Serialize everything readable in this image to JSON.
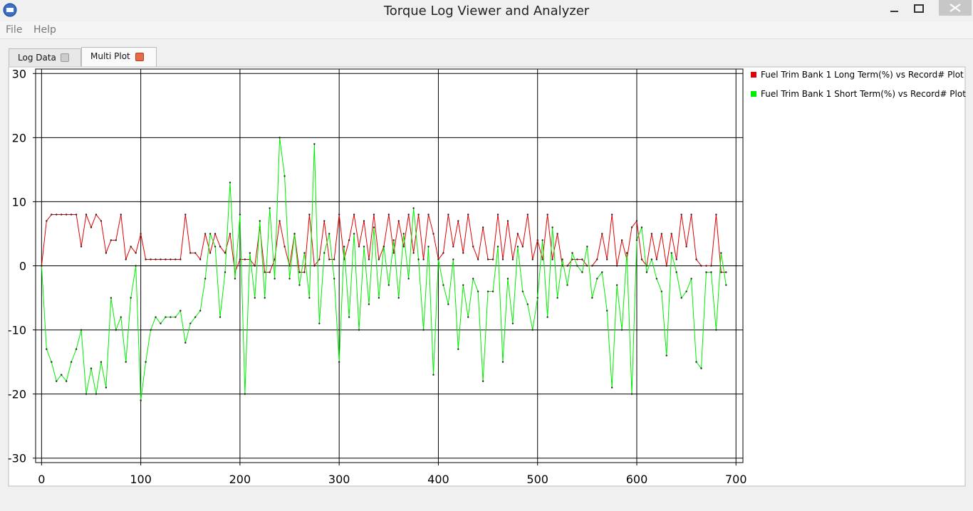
{
  "window_title": "Torque Log Viewer and Analyzer",
  "menu": [
    "File",
    "Help"
  ],
  "tabs": [
    "Log Data",
    "Multi Plot"
  ],
  "chart_data": {
    "type": "line",
    "x": [
      0,
      5,
      10,
      15,
      20,
      25,
      30,
      35,
      40,
      45,
      50,
      55,
      60,
      65,
      70,
      75,
      80,
      85,
      90,
      95,
      100,
      105,
      110,
      115,
      120,
      125,
      130,
      135,
      140,
      145,
      150,
      155,
      160,
      165,
      170,
      175,
      180,
      185,
      190,
      195,
      200,
      205,
      210,
      215,
      220,
      225,
      230,
      235,
      240,
      245,
      250,
      255,
      260,
      265,
      270,
      275,
      280,
      285,
      290,
      295,
      300,
      305,
      310,
      315,
      320,
      325,
      330,
      335,
      340,
      345,
      350,
      355,
      360,
      365,
      370,
      375,
      380,
      385,
      390,
      395,
      400,
      405,
      410,
      415,
      420,
      425,
      430,
      435,
      440,
      445,
      450,
      455,
      460,
      465,
      470,
      475,
      480,
      485,
      490,
      495,
      500,
      505,
      510,
      515,
      520,
      525,
      530,
      535,
      540,
      545,
      550,
      555,
      560,
      565,
      570,
      575,
      580,
      585,
      590,
      595,
      600,
      605,
      610,
      615,
      620,
      625,
      630,
      635,
      640,
      645,
      650,
      655,
      660,
      665,
      670,
      675,
      680,
      685,
      690
    ],
    "series": [
      {
        "name": "Fuel Trim Bank 1 Long Term(%) vs Record# Plot",
        "color": "#e00000",
        "values": [
          0,
          7,
          8,
          8,
          8,
          8,
          8,
          8,
          3,
          8,
          6,
          8,
          7,
          2,
          4,
          4,
          8,
          1,
          3,
          2,
          5,
          1,
          1,
          1,
          1,
          1,
          1,
          1,
          1,
          8,
          2,
          2,
          1,
          5,
          2,
          5,
          3,
          2,
          5,
          -1,
          1,
          1,
          1,
          0,
          6,
          -1,
          -1,
          1,
          7,
          3,
          0,
          5,
          -1,
          -1,
          8,
          0,
          1,
          7,
          1,
          1,
          8,
          1,
          4,
          8,
          3,
          7,
          1,
          8,
          1,
          3,
          8,
          2,
          7,
          3,
          8,
          2,
          8,
          1,
          8,
          5,
          1,
          2,
          8,
          3,
          7,
          2,
          8,
          3,
          1,
          6,
          1,
          1,
          8,
          1,
          7,
          1,
          5,
          3,
          8,
          1,
          4,
          1,
          8,
          1,
          5,
          0,
          0,
          1,
          1,
          1,
          0,
          0,
          1,
          5,
          1,
          8,
          0,
          4,
          1,
          6,
          7,
          1,
          0,
          5,
          1,
          5,
          0,
          5,
          1,
          8,
          3,
          8,
          1,
          0,
          0,
          0,
          8,
          -1,
          -1
        ]
      },
      {
        "name": "Fuel Trim Bank 1 Short Term(%) vs Record# Plot",
        "color": "#00ee00",
        "values": [
          0,
          -13,
          -15,
          -18,
          -17,
          -18,
          -15,
          -13,
          -10,
          -20,
          -16,
          -20,
          -15,
          -19,
          -5,
          -10,
          -8,
          -15,
          -5,
          0,
          -21,
          -15,
          -10,
          -8,
          -9,
          -8,
          -8,
          -8,
          -7,
          -12,
          -9,
          -8,
          -7,
          -2,
          5,
          3,
          -8,
          -1,
          13,
          -2,
          8,
          -20,
          2,
          -5,
          7,
          -5,
          9,
          -2,
          20,
          14,
          -2,
          5,
          -3,
          2,
          -5,
          19,
          -9,
          2,
          5,
          -2,
          -15,
          3,
          -8,
          5,
          -10,
          3,
          -6,
          6,
          -5,
          3,
          -3,
          4,
          -5,
          5,
          -2,
          9,
          1,
          -10,
          3,
          -17,
          1,
          -3,
          -6,
          1,
          -13,
          -3,
          -8,
          -2,
          -4,
          -18,
          -4,
          -4,
          3,
          -15,
          -2,
          -9,
          3,
          -4,
          -6,
          -10,
          -5,
          4,
          -8,
          6,
          -5,
          1,
          -3,
          2,
          0,
          -1,
          3,
          -5,
          -2,
          -1,
          -7,
          -19,
          -3,
          -10,
          2,
          -20,
          4,
          6,
          -1,
          1,
          -2,
          -4,
          -14,
          2,
          -1,
          -5,
          -4,
          -2,
          -15,
          -16,
          -1,
          -1,
          -10,
          2,
          -3
        ]
      }
    ],
    "xlim": [
      -6,
      707
    ],
    "ylim": [
      -30.7,
      30.7
    ],
    "xticks": [
      0,
      100,
      200,
      300,
      400,
      500,
      600,
      700
    ],
    "yticks": [
      -30,
      -20,
      -10,
      0,
      10,
      20,
      30
    ],
    "grid": true,
    "legend": "right"
  }
}
